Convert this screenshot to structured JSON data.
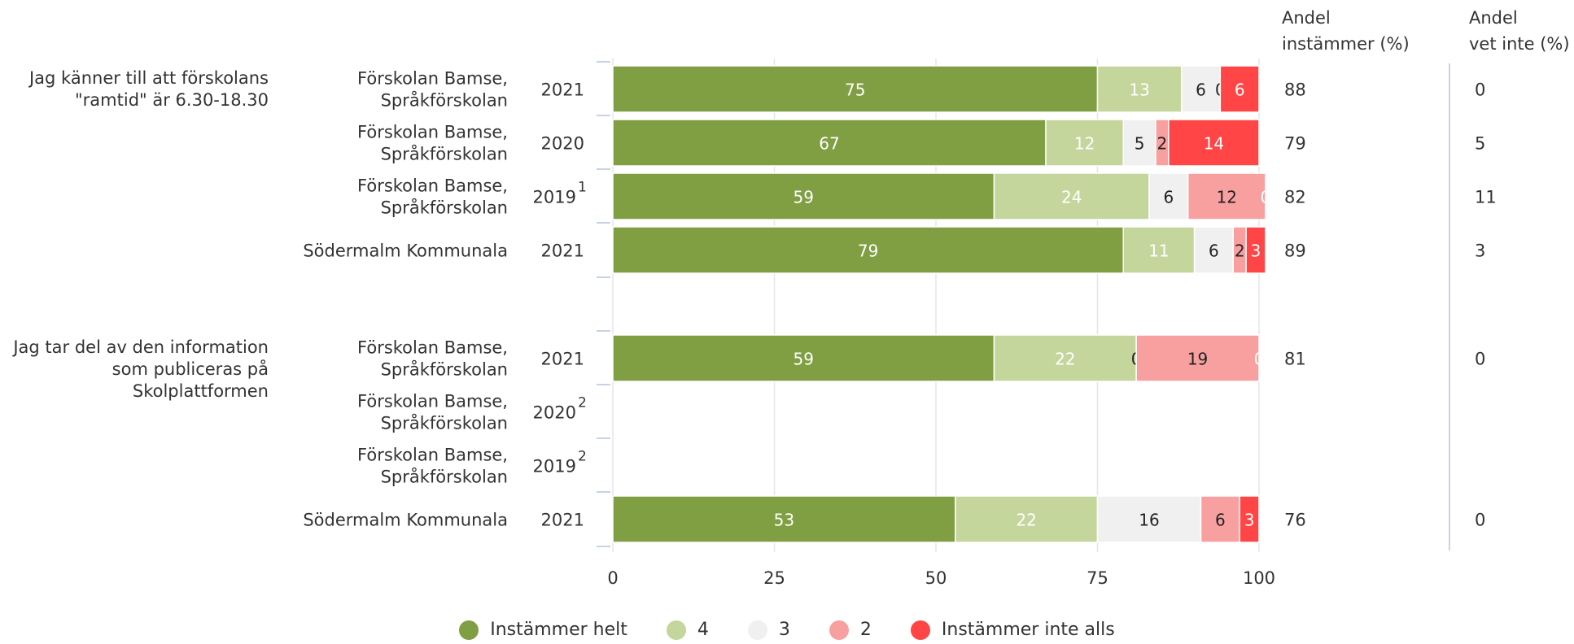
{
  "headers": {
    "share_agree": [
      "Andel",
      "instämmer (%)"
    ],
    "share_dont_know": [
      "Andel",
      "vet inte (%)"
    ]
  },
  "chart_data": {
    "type": "bar",
    "orientation": "horizontal",
    "stacked": true,
    "xlim": [
      0,
      100
    ],
    "xticks": [
      0,
      25,
      50,
      75,
      100
    ],
    "grid": true,
    "legend_position": "bottom",
    "legend": [
      {
        "name": "Instämmer helt",
        "color": "#809e42"
      },
      {
        "name": "4",
        "color": "#c4d69c"
      },
      {
        "name": "3",
        "color": "#f0f0f0"
      },
      {
        "name": "2",
        "color": "#f8a0a0"
      },
      {
        "name": "Instämmer inte alls",
        "color": "#ff4545"
      }
    ],
    "groups": [
      {
        "question": [
          "Jag känner till att förskolans",
          "\"ramtid\" är 6.30-18.30"
        ],
        "rows": [
          {
            "unit": [
              "Förskolan Bamse,",
              "Språkförskolan"
            ],
            "year": "2021",
            "footnote": "",
            "values": [
              75,
              13,
              6,
              0,
              6
            ],
            "share_agree": "88",
            "share_dont_know": "0"
          },
          {
            "unit": [
              "Förskolan Bamse,",
              "Språkförskolan"
            ],
            "year": "2020",
            "footnote": "",
            "values": [
              67,
              12,
              5,
              2,
              14
            ],
            "share_agree": "79",
            "share_dont_know": "5"
          },
          {
            "unit": [
              "Förskolan Bamse,",
              "Språkförskolan"
            ],
            "year": "2019",
            "footnote": "1",
            "values": [
              59,
              24,
              6,
              12,
              0
            ],
            "share_agree": "82",
            "share_dont_know": "11"
          },
          {
            "unit": [
              "Södermalm Kommunala"
            ],
            "year": "2021",
            "footnote": "",
            "values": [
              79,
              11,
              6,
              2,
              3
            ],
            "share_agree": "89",
            "share_dont_know": "3"
          }
        ]
      },
      {
        "question": [
          "Jag tar del av den information",
          "som publiceras på",
          "Skolplattformen"
        ],
        "rows": [
          {
            "unit": [
              "Förskolan Bamse,",
              "Språkförskolan"
            ],
            "year": "2021",
            "footnote": "",
            "values": [
              59,
              22,
              0,
              19,
              0
            ],
            "share_agree": "81",
            "share_dont_know": "0"
          },
          {
            "unit": [
              "Förskolan Bamse,",
              "Språkförskolan"
            ],
            "year": "2020",
            "footnote": "2",
            "values": null,
            "share_agree": "",
            "share_dont_know": ""
          },
          {
            "unit": [
              "Förskolan Bamse,",
              "Språkförskolan"
            ],
            "year": "2019",
            "footnote": "2",
            "values": null,
            "share_agree": "",
            "share_dont_know": ""
          },
          {
            "unit": [
              "Södermalm Kommunala"
            ],
            "year": "2021",
            "footnote": "",
            "values": [
              53,
              22,
              16,
              6,
              3
            ],
            "share_agree": "76",
            "share_dont_know": "0"
          }
        ]
      }
    ]
  }
}
